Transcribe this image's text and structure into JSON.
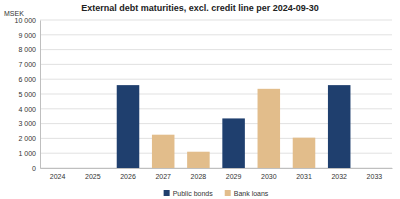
{
  "chart_data": {
    "type": "bar",
    "title": "External debt maturities, excl. credit line per 2024-09-30",
    "y_label": "MSEK",
    "categories": [
      "2024",
      "2025",
      "2026",
      "2027",
      "2028",
      "2029",
      "2030",
      "2031",
      "2032",
      "2033"
    ],
    "series": [
      {
        "name": "Public bonds",
        "color": "#1f3f6e",
        "values": [
          null,
          null,
          5600,
          null,
          null,
          3350,
          null,
          null,
          5600,
          null
        ]
      },
      {
        "name": "Bank loans",
        "color": "#e2bd8b",
        "values": [
          null,
          null,
          null,
          2250,
          1100,
          null,
          5350,
          2050,
          null,
          null
        ]
      }
    ],
    "ylim": [
      0,
      10000
    ],
    "yticks": [
      0,
      {
        "value": 1000,
        "label": "1 000"
      },
      {
        "value": 2000,
        "label": "2 000"
      },
      {
        "value": 3000,
        "label": "3 000"
      },
      {
        "value": 4000,
        "label": "4 000"
      },
      {
        "value": 5000,
        "label": "5 000"
      },
      {
        "value": 6000,
        "label": "6 000"
      },
      {
        "value": 7000,
        "label": "7 000"
      },
      {
        "value": 8000,
        "label": "8 000"
      },
      {
        "value": 9000,
        "label": "9 000"
      },
      {
        "value": 10000,
        "label": "10 000"
      }
    ],
    "grid": true,
    "stacked": true,
    "legend": "bottom"
  }
}
